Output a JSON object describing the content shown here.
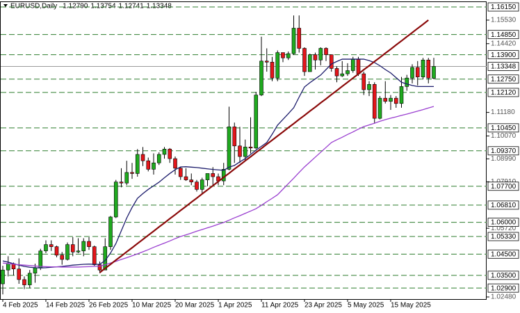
{
  "chart_data": {
    "type": "candlestick",
    "title": "EURUSD,Daily",
    "header_labels": [
      "1.12790",
      "1.13754",
      "1.12741",
      "1.13348"
    ],
    "categories": [
      "4 Feb 2025",
      null,
      null,
      null,
      null,
      null,
      null,
      null,
      "14 Feb 2025",
      null,
      null,
      null,
      null,
      null,
      null,
      null,
      "26 Feb 2025",
      null,
      null,
      null,
      null,
      null,
      null,
      null,
      "10 Mar 2025",
      null,
      null,
      null,
      null,
      null,
      null,
      null,
      "20 Mar 2025",
      null,
      null,
      null,
      null,
      null,
      null,
      null,
      "1 Apr 2025",
      null,
      null,
      null,
      null,
      null,
      null,
      null,
      "11 Apr 2025",
      null,
      null,
      null,
      null,
      null,
      null,
      null,
      "23 Apr 2025",
      null,
      null,
      null,
      null,
      null,
      null,
      null,
      "5 May 2025",
      null,
      null,
      null,
      null,
      null,
      null,
      null,
      "15 May 2025",
      null,
      null,
      null,
      null,
      null,
      null,
      null,
      null
    ],
    "open": [
      1.031,
      1.0375,
      1.0405,
      1.038,
      1.033,
      1.0305,
      1.036,
      1.0385,
      1.0465,
      1.0495,
      1.0485,
      1.0445,
      1.0425,
      1.0495,
      1.046,
      1.0465,
      1.051,
      1.0485,
      1.04,
      1.0375,
      1.0485,
      1.0625,
      1.079,
      1.0785,
      1.0835,
      1.083,
      1.092,
      1.089,
      1.085,
      1.088,
      1.092,
      1.0945,
      1.09,
      1.0855,
      1.0815,
      1.08,
      1.079,
      1.0755,
      1.08,
      1.083,
      1.0815,
      1.0795,
      1.085,
      1.105,
      1.096,
      1.091,
      1.0955,
      1.095,
      1.12,
      1.136,
      1.1355,
      1.128,
      1.14,
      1.1375,
      1.1395,
      1.1515,
      1.142,
      1.131,
      1.139,
      1.1365,
      1.142,
      1.139,
      1.1325,
      1.129,
      1.13,
      1.1315,
      1.137,
      1.13,
      1.1225,
      1.125,
      1.109,
      1.1185,
      1.117,
      1.1185,
      1.116,
      1.124,
      1.128,
      1.133,
      1.1285,
      1.1365,
      1.1279
    ],
    "high": [
      1.0395,
      1.044,
      1.041,
      1.043,
      1.0345,
      1.0375,
      1.0405,
      1.0475,
      1.0515,
      1.0515,
      1.049,
      1.046,
      1.0505,
      1.053,
      1.0525,
      1.0525,
      1.053,
      1.049,
      1.0415,
      1.0525,
      1.063,
      1.08,
      1.0855,
      1.089,
      1.088,
      1.0945,
      1.0955,
      1.0905,
      1.0925,
      1.093,
      1.0955,
      1.095,
      1.091,
      1.086,
      1.0855,
      1.083,
      1.08,
      1.081,
      1.083,
      1.086,
      1.083,
      1.088,
      1.1145,
      1.107,
      1.105,
      1.099,
      1.1095,
      1.1215,
      1.1475,
      1.142,
      1.138,
      1.141,
      1.139,
      1.1405,
      1.1575,
      1.1575,
      1.1425,
      1.1395,
      1.14,
      1.1425,
      1.1425,
      1.138,
      1.1335,
      1.136,
      1.135,
      1.138,
      1.138,
      1.131,
      1.1265,
      1.126,
      1.1195,
      1.1265,
      1.12,
      1.1195,
      1.1285,
      1.1295,
      1.1345,
      1.136,
      1.1375,
      1.1375,
      1.13754
    ],
    "low": [
      1.026,
      1.0345,
      1.035,
      1.031,
      1.0285,
      1.029,
      1.0315,
      1.0375,
      1.0455,
      1.0465,
      1.0435,
      1.04,
      1.042,
      1.044,
      1.0455,
      1.044,
      1.047,
      1.0395,
      1.036,
      1.0375,
      1.047,
      1.062,
      1.0765,
      1.0775,
      1.0805,
      1.0815,
      1.0865,
      1.084,
      1.0825,
      1.087,
      1.09,
      1.088,
      1.0825,
      1.08,
      1.0795,
      1.0775,
      1.0745,
      1.0735,
      1.077,
      1.0775,
      1.0775,
      1.0775,
      1.0845,
      1.088,
      1.088,
      1.089,
      1.0925,
      1.0945,
      1.1195,
      1.131,
      1.1265,
      1.1265,
      1.1355,
      1.1365,
      1.139,
      1.14,
      1.129,
      1.131,
      1.132,
      1.134,
      1.136,
      1.131,
      1.126,
      1.1285,
      1.129,
      1.1305,
      1.129,
      1.12,
      1.1195,
      1.1065,
      1.1085,
      1.116,
      1.113,
      1.114,
      1.114,
      1.122,
      1.1255,
      1.1245,
      1.1275,
      1.1255,
      1.12741
    ],
    "close": [
      1.0375,
      1.0405,
      1.038,
      1.033,
      1.0305,
      1.036,
      1.0385,
      1.0465,
      1.0495,
      1.0485,
      1.0445,
      1.0425,
      1.0495,
      1.046,
      1.0465,
      1.051,
      1.0485,
      1.04,
      1.0375,
      1.0485,
      1.0625,
      1.079,
      1.0785,
      1.0835,
      1.083,
      1.092,
      1.089,
      1.085,
      1.088,
      1.092,
      1.0945,
      1.09,
      1.0855,
      1.0815,
      1.08,
      1.079,
      1.0755,
      1.08,
      1.083,
      1.0815,
      1.0795,
      1.085,
      1.105,
      1.096,
      1.091,
      1.0955,
      1.095,
      1.12,
      1.136,
      1.1355,
      1.128,
      1.14,
      1.1375,
      1.1395,
      1.1515,
      1.142,
      1.131,
      1.139,
      1.1365,
      1.142,
      1.139,
      1.1325,
      1.129,
      1.13,
      1.1315,
      1.137,
      1.13,
      1.1225,
      1.125,
      1.109,
      1.1185,
      1.117,
      1.1185,
      1.116,
      1.124,
      1.128,
      1.133,
      1.1285,
      1.1365,
      1.128,
      1.13348
    ],
    "up_color": "#1faa1f",
    "down_color": "#e3161b",
    "indicators": [
      {
        "color": "#1b1b6b",
        "values": [
          1.0418,
          1.0412,
          1.0405,
          1.0398,
          1.0392,
          1.0388,
          1.0386,
          1.0385,
          1.0386,
          1.0388,
          1.039,
          1.0392,
          1.0395,
          1.0398,
          1.04,
          1.0402,
          1.0403,
          1.0402,
          1.0402,
          1.042,
          1.0455,
          1.05,
          1.056,
          1.062,
          1.067,
          1.0713,
          1.0735,
          1.0755,
          1.0772,
          1.0789,
          1.081,
          1.083,
          1.0848,
          1.0861,
          1.0862,
          1.086,
          1.0858,
          1.0855,
          1.0852,
          1.0849,
          1.0847,
          1.0845,
          1.086,
          1.0868,
          1.0885,
          1.09,
          1.092,
          1.094,
          1.0958,
          1.0976,
          1.1015,
          1.1058,
          1.1085,
          1.1112,
          1.114,
          1.119,
          1.1238,
          1.1258,
          1.1276,
          1.1294,
          1.132,
          1.1346,
          1.1358,
          1.1369,
          1.1369,
          1.1369,
          1.1369,
          1.1369,
          1.1362,
          1.1353,
          1.1338,
          1.132,
          1.1304,
          1.1282,
          1.126,
          1.1252,
          1.1245,
          1.124,
          1.124,
          1.124,
          1.124
        ]
      },
      {
        "color": "#9a3fd0",
        "values": [
          1.0408,
          1.0405,
          1.0403,
          1.04,
          1.0398,
          1.0396,
          1.0394,
          1.0392,
          1.0391,
          1.039,
          1.039,
          1.0389,
          1.0389,
          1.0389,
          1.0389,
          1.039,
          1.0391,
          1.0392,
          1.0393,
          1.04,
          1.0408,
          1.0416,
          1.0425,
          1.0433,
          1.0442,
          1.0451,
          1.0461,
          1.0471,
          1.0482,
          1.0492,
          1.0502,
          1.0512,
          1.0523,
          1.0533,
          1.0541,
          1.0549,
          1.0558,
          1.0566,
          1.0574,
          1.0582,
          1.0591,
          1.0599,
          1.061,
          1.0621,
          1.0631,
          1.0642,
          1.0653,
          1.0664,
          1.068,
          1.0697,
          1.0713,
          1.073,
          1.0756,
          1.0782,
          1.0808,
          1.0835,
          1.0861,
          1.0884,
          1.0907,
          1.093,
          1.0953,
          1.0976,
          1.0989,
          1.1001,
          1.1014,
          1.1026,
          1.1039,
          1.1051,
          1.1059,
          1.1067,
          1.1076,
          1.1084,
          1.1091,
          1.1097,
          1.1104,
          1.111,
          1.1117,
          1.1124,
          1.1131,
          1.1139,
          1.1146
        ]
      }
    ],
    "trendline": {
      "color": "#8b0a0a",
      "values": [
        null,
        null,
        null,
        null,
        null,
        null,
        null,
        null,
        null,
        null,
        null,
        null,
        null,
        null,
        null,
        null,
        null,
        null,
        1.0363,
        1.0383,
        1.0402,
        1.0422,
        1.0441,
        1.0461,
        1.048,
        1.05,
        1.0519,
        1.0539,
        1.0558,
        1.0578,
        1.0597,
        1.0617,
        1.0636,
        1.0656,
        1.0675,
        1.0695,
        1.0714,
        1.0734,
        1.0753,
        1.0773,
        1.0792,
        1.0812,
        1.0831,
        1.0851,
        1.087,
        1.089,
        1.0909,
        1.0929,
        1.0948,
        1.0968,
        1.0987,
        1.1007,
        1.1026,
        1.1046,
        1.1065,
        1.1085,
        1.1104,
        1.1124,
        1.1143,
        1.1163,
        1.1182,
        1.1202,
        1.1221,
        1.1241,
        1.126,
        1.128,
        1.1299,
        1.1319,
        1.1338,
        1.1358,
        1.1377,
        1.1397,
        1.1416,
        1.1436,
        1.1455,
        1.1475,
        1.1494,
        1.1514,
        1.1533,
        1.1553,
        null
      ]
    },
    "level_color": "#2f7d2f",
    "levels": [
      {
        "value": 1.1615,
        "label": "1.16150"
      },
      {
        "value": 1.1485,
        "label": "1.14850"
      },
      {
        "value": 1.139,
        "label": "1.13900"
      },
      {
        "value": 1.1275,
        "label": "1.12750"
      },
      {
        "value": 1.1212,
        "label": "1.12120"
      },
      {
        "value": 1.1045,
        "label": "1.10450"
      },
      {
        "value": 1.0937,
        "label": "1.09370"
      },
      {
        "value": 1.077,
        "label": "1.07700"
      },
      {
        "value": 1.0681,
        "label": "1.06810"
      },
      {
        "value": 1.06,
        "label": "1.06000"
      },
      {
        "value": 1.0533,
        "label": "1.05330"
      },
      {
        "value": 1.045,
        "label": "1.04500"
      },
      {
        "value": 1.035,
        "label": "1.03500"
      },
      {
        "value": 1.029,
        "label": "1.02900"
      }
    ],
    "current_price": {
      "value": 1.13348,
      "label": "1.13348"
    },
    "ylim": [
      1.0238,
      1.1638
    ],
    "yticks": [
      {
        "value": 1.1553,
        "label": "1.15530"
      },
      {
        "value": 1.1442,
        "label": "1.14420"
      },
      {
        "value": 1.1118,
        "label": "1.11180"
      },
      {
        "value": 1.1007,
        "label": "1.10070"
      },
      {
        "value": 1.0899,
        "label": "1.08990"
      },
      {
        "value": 1.0791,
        "label": "1.07910"
      },
      {
        "value": 1.0572,
        "label": "1.05720"
      },
      {
        "value": 1.0248,
        "label": "1.02480"
      }
    ]
  }
}
